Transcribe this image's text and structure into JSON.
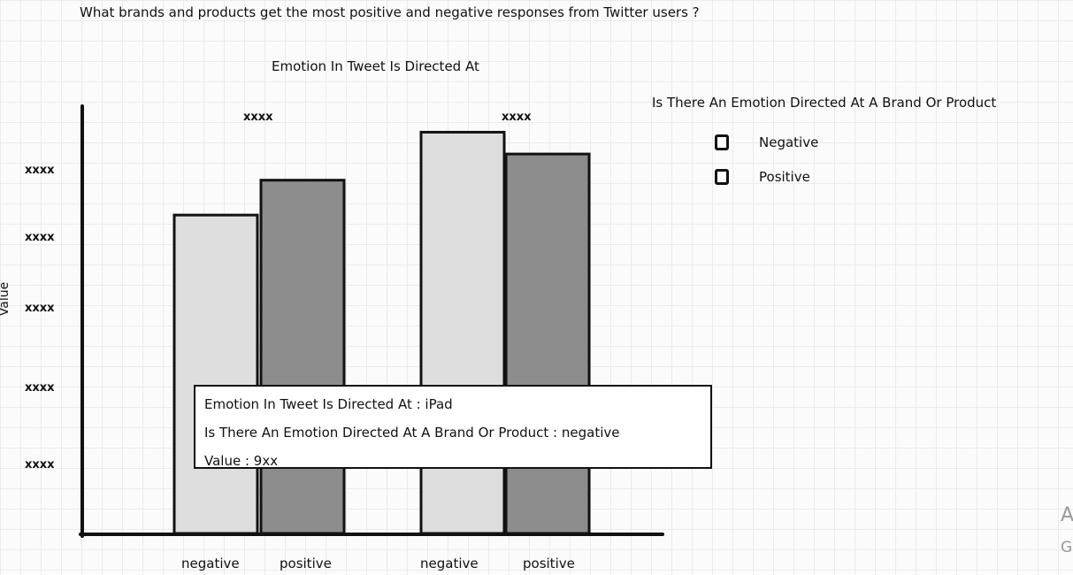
{
  "question": "What brands and products get the most positive and negative responses from Twitter users ?",
  "chart_data": {
    "type": "bar",
    "title": "Emotion In Tweet Is Directed At",
    "ylabel": "Value",
    "y_tick_labels": [
      "xxxx",
      "xxxx",
      "xxxx",
      "xxxx",
      "xxxx"
    ],
    "groups": [
      "xxxx",
      "xxxx"
    ],
    "categories": [
      "negative",
      "positive",
      "negative",
      "positive"
    ],
    "values": [
      0.73,
      0.81,
      0.92,
      0.87
    ],
    "bar_colors": [
      "#dedede",
      "#8c8c8c",
      "#dedede",
      "#8c8c8c"
    ],
    "ylim": [
      0,
      1
    ],
    "legend": {
      "title": "Is There An Emotion Directed At A Brand Or Product",
      "entries": [
        "Negative",
        "Positive"
      ],
      "position": "top-right"
    }
  },
  "tooltip": {
    "line1": "Emotion In Tweet Is Directed At : iPad",
    "line2": "Is There An Emotion Directed At A Brand Or Product : negative",
    "line3": "Value : 9xx"
  },
  "edge_text": {
    "a": "A",
    "g": "G"
  }
}
